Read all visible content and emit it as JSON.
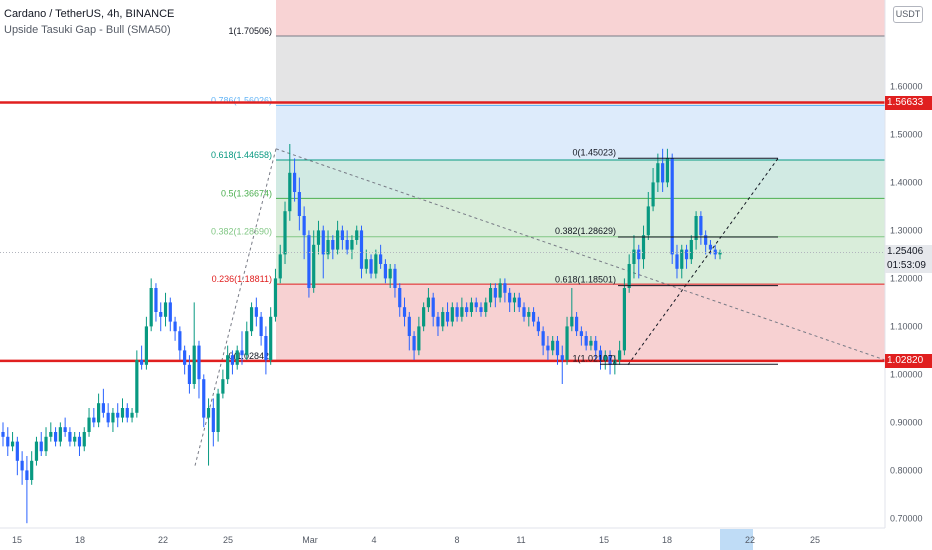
{
  "header": {
    "title": "Cardano / TetherUS, 4h, BINANCE",
    "indicator": "Upside Tasuki Gap - Bull (SMA50)"
  },
  "toolbar": {
    "currency_button": "USDT"
  },
  "price_axis": {
    "ticks": [
      "1.60000",
      "1.50000",
      "1.40000",
      "1.30000",
      "1.20000",
      "1.10000",
      "1.00000",
      "0.90000",
      "0.80000",
      "0.70000"
    ],
    "tick_values": [
      1.6,
      1.5,
      1.4,
      1.3,
      1.2,
      1.1,
      1.0,
      0.9,
      0.8,
      0.7
    ],
    "current_price": "1.25406",
    "countdown": "01:53:09",
    "resistance_label": "1.56633",
    "support_label": "1.02820"
  },
  "time_axis": {
    "labels": [
      "15",
      "18",
      "22",
      "25",
      "Mar",
      "4",
      "8",
      "11",
      "15",
      "18",
      "22",
      "25"
    ],
    "highlighted": "22"
  },
  "colors": {
    "up": "#089981",
    "down": "#2962ff",
    "level_line": "#e01f1f",
    "fib_red": "#f7cfd0",
    "fib_green": "#d7ecd8",
    "fib_teal": "#cfe9e2",
    "fib_blue": "#dbeafb",
    "fib_grey": "#e3e3e4"
  },
  "chart_data": {
    "type": "candlestick",
    "title": "Cardano / TetherUS, 4h, BINANCE",
    "ylim": [
      0.68,
      1.78
    ],
    "grid": false,
    "horizontal_levels": [
      1.56633,
      1.0282
    ],
    "fib_retracement_1": {
      "labels": [
        "1(1.70506)",
        "0.786(1.56026)",
        "0.618(1.44658)",
        "0.5(1.36674)",
        "0.382(1.28690)",
        "0.236(1.18811)",
        "0(1.02842)"
      ],
      "levels": [
        1.70506,
        1.56026,
        1.44658,
        1.36674,
        1.2869,
        1.18811,
        1.02842
      ]
    },
    "fib_retracement_2": {
      "labels": [
        "0(1.45023)",
        "0.382(1.28629)",
        "0.618(1.18501)",
        "1(1.02107)"
      ],
      "levels": [
        1.45023,
        1.28629,
        1.18501,
        1.02107
      ]
    },
    "candles": [
      [
        0.88,
        0.87,
        0.9,
        0.85
      ],
      [
        0.87,
        0.85,
        0.89,
        0.83
      ],
      [
        0.85,
        0.86,
        0.88,
        0.84
      ],
      [
        0.86,
        0.82,
        0.87,
        0.79
      ],
      [
        0.82,
        0.8,
        0.84,
        0.77
      ],
      [
        0.8,
        0.78,
        0.83,
        0.69
      ],
      [
        0.78,
        0.82,
        0.84,
        0.77
      ],
      [
        0.82,
        0.86,
        0.87,
        0.81
      ],
      [
        0.86,
        0.84,
        0.88,
        0.83
      ],
      [
        0.84,
        0.87,
        0.89,
        0.83
      ],
      [
        0.87,
        0.88,
        0.9,
        0.86
      ],
      [
        0.88,
        0.86,
        0.89,
        0.85
      ],
      [
        0.86,
        0.89,
        0.9,
        0.85
      ],
      [
        0.89,
        0.88,
        0.91,
        0.87
      ],
      [
        0.88,
        0.86,
        0.89,
        0.85
      ],
      [
        0.86,
        0.87,
        0.88,
        0.85
      ],
      [
        0.87,
        0.85,
        0.88,
        0.83
      ],
      [
        0.85,
        0.88,
        0.89,
        0.84
      ],
      [
        0.88,
        0.91,
        0.93,
        0.87
      ],
      [
        0.91,
        0.9,
        0.93,
        0.89
      ],
      [
        0.9,
        0.94,
        0.96,
        0.89
      ],
      [
        0.94,
        0.92,
        0.97,
        0.91
      ],
      [
        0.92,
        0.9,
        0.94,
        0.89
      ],
      [
        0.9,
        0.92,
        0.93,
        0.88
      ],
      [
        0.92,
        0.91,
        0.94,
        0.89
      ],
      [
        0.91,
        0.93,
        0.95,
        0.9
      ],
      [
        0.93,
        0.91,
        0.94,
        0.9
      ],
      [
        0.91,
        0.92,
        0.93,
        0.9
      ],
      [
        0.92,
        1.03,
        1.05,
        0.91
      ],
      [
        1.03,
        1.02,
        1.06,
        1.01
      ],
      [
        1.02,
        1.1,
        1.12,
        1.01
      ],
      [
        1.1,
        1.18,
        1.2,
        1.09
      ],
      [
        1.18,
        1.13,
        1.19,
        1.11
      ],
      [
        1.13,
        1.12,
        1.15,
        1.09
      ],
      [
        1.12,
        1.15,
        1.17,
        1.1
      ],
      [
        1.15,
        1.11,
        1.16,
        1.09
      ],
      [
        1.11,
        1.09,
        1.12,
        1.07
      ],
      [
        1.09,
        1.05,
        1.1,
        1.03
      ],
      [
        1.05,
        1.02,
        1.06,
        1.0
      ],
      [
        1.02,
        0.98,
        1.04,
        0.96
      ],
      [
        0.98,
        1.06,
        1.15,
        0.97
      ],
      [
        1.06,
        0.99,
        1.07,
        0.95
      ],
      [
        0.99,
        0.91,
        1.0,
        0.89
      ],
      [
        0.91,
        0.93,
        0.95,
        0.81
      ],
      [
        0.93,
        0.88,
        0.95,
        0.85
      ],
      [
        0.88,
        0.96,
        0.97,
        0.86
      ],
      [
        0.96,
        0.99,
        1.01,
        0.95
      ],
      [
        0.99,
        1.04,
        1.06,
        0.98
      ],
      [
        1.04,
        1.02,
        1.05,
        1.0
      ],
      [
        1.02,
        1.05,
        1.06,
        1.01
      ],
      [
        1.05,
        1.04,
        1.09,
        1.02
      ],
      [
        1.04,
        1.09,
        1.11,
        1.03
      ],
      [
        1.09,
        1.14,
        1.15,
        1.08
      ],
      [
        1.14,
        1.12,
        1.16,
        1.1
      ],
      [
        1.12,
        1.08,
        1.13,
        1.06
      ],
      [
        1.08,
        1.03,
        1.1,
        1.0
      ],
      [
        1.03,
        1.12,
        1.14,
        1.02
      ],
      [
        1.12,
        1.2,
        1.22,
        1.11
      ],
      [
        1.2,
        1.25,
        1.27,
        1.19
      ],
      [
        1.25,
        1.34,
        1.36,
        1.23
      ],
      [
        1.34,
        1.42,
        1.48,
        1.32
      ],
      [
        1.42,
        1.38,
        1.45,
        1.36
      ],
      [
        1.38,
        1.33,
        1.41,
        1.3
      ],
      [
        1.33,
        1.29,
        1.35,
        1.24
      ],
      [
        1.29,
        1.18,
        1.3,
        1.16
      ],
      [
        1.18,
        1.27,
        1.3,
        1.17
      ],
      [
        1.27,
        1.3,
        1.32,
        1.25
      ],
      [
        1.3,
        1.25,
        1.31,
        1.2
      ],
      [
        1.25,
        1.28,
        1.3,
        1.24
      ],
      [
        1.28,
        1.26,
        1.29,
        1.24
      ],
      [
        1.26,
        1.3,
        1.32,
        1.25
      ],
      [
        1.3,
        1.28,
        1.31,
        1.26
      ],
      [
        1.28,
        1.26,
        1.3,
        1.25
      ],
      [
        1.26,
        1.28,
        1.29,
        1.24
      ],
      [
        1.28,
        1.3,
        1.31,
        1.27
      ],
      [
        1.3,
        1.22,
        1.31,
        1.2
      ],
      [
        1.22,
        1.24,
        1.26,
        1.21
      ],
      [
        1.24,
        1.21,
        1.25,
        1.2
      ],
      [
        1.21,
        1.25,
        1.26,
        1.2
      ],
      [
        1.25,
        1.23,
        1.27,
        1.22
      ],
      [
        1.23,
        1.2,
        1.24,
        1.19
      ],
      [
        1.2,
        1.22,
        1.23,
        1.18
      ],
      [
        1.22,
        1.18,
        1.23,
        1.16
      ],
      [
        1.18,
        1.14,
        1.19,
        1.12
      ],
      [
        1.14,
        1.12,
        1.16,
        1.1
      ],
      [
        1.12,
        1.08,
        1.13,
        1.05
      ],
      [
        1.08,
        1.05,
        1.09,
        1.03
      ],
      [
        1.05,
        1.1,
        1.12,
        1.04
      ],
      [
        1.1,
        1.14,
        1.15,
        1.09
      ],
      [
        1.14,
        1.16,
        1.18,
        1.13
      ],
      [
        1.16,
        1.12,
        1.17,
        1.1
      ],
      [
        1.12,
        1.1,
        1.13,
        1.08
      ],
      [
        1.1,
        1.13,
        1.14,
        1.09
      ],
      [
        1.13,
        1.11,
        1.15,
        1.1
      ],
      [
        1.11,
        1.14,
        1.15,
        1.1
      ],
      [
        1.14,
        1.12,
        1.15,
        1.11
      ],
      [
        1.12,
        1.14,
        1.16,
        1.11
      ],
      [
        1.14,
        1.13,
        1.15,
        1.12
      ],
      [
        1.13,
        1.15,
        1.16,
        1.12
      ],
      [
        1.15,
        1.14,
        1.16,
        1.13
      ],
      [
        1.14,
        1.13,
        1.15,
        1.12
      ],
      [
        1.13,
        1.15,
        1.16,
        1.12
      ],
      [
        1.15,
        1.18,
        1.19,
        1.14
      ],
      [
        1.18,
        1.16,
        1.19,
        1.14
      ],
      [
        1.16,
        1.19,
        1.2,
        1.15
      ],
      [
        1.19,
        1.17,
        1.2,
        1.15
      ],
      [
        1.17,
        1.15,
        1.18,
        1.13
      ],
      [
        1.15,
        1.16,
        1.17,
        1.13
      ],
      [
        1.16,
        1.14,
        1.17,
        1.13
      ],
      [
        1.14,
        1.12,
        1.15,
        1.11
      ],
      [
        1.12,
        1.13,
        1.14,
        1.1
      ],
      [
        1.13,
        1.11,
        1.14,
        1.1
      ],
      [
        1.11,
        1.09,
        1.12,
        1.08
      ],
      [
        1.09,
        1.06,
        1.1,
        1.04
      ],
      [
        1.06,
        1.05,
        1.08,
        1.03
      ],
      [
        1.05,
        1.07,
        1.08,
        1.04
      ],
      [
        1.07,
        1.04,
        1.08,
        1.02
      ],
      [
        1.04,
        1.03,
        1.06,
        0.98
      ],
      [
        1.03,
        1.1,
        1.12,
        1.02
      ],
      [
        1.1,
        1.12,
        1.18,
        1.09
      ],
      [
        1.12,
        1.09,
        1.13,
        1.08
      ],
      [
        1.09,
        1.08,
        1.1,
        1.06
      ],
      [
        1.08,
        1.06,
        1.09,
        1.05
      ],
      [
        1.06,
        1.07,
        1.08,
        1.05
      ],
      [
        1.07,
        1.05,
        1.08,
        1.03
      ],
      [
        1.05,
        1.03,
        1.06,
        1.01
      ],
      [
        1.03,
        1.04,
        1.05,
        1.01
      ],
      [
        1.04,
        1.02,
        1.05,
        1.0
      ],
      [
        1.02,
        1.03,
        1.04,
        1.0
      ],
      [
        1.03,
        1.05,
        1.07,
        1.02
      ],
      [
        1.05,
        1.18,
        1.2,
        1.04
      ],
      [
        1.18,
        1.23,
        1.25,
        1.17
      ],
      [
        1.23,
        1.26,
        1.29,
        1.2
      ],
      [
        1.26,
        1.24,
        1.27,
        1.2
      ],
      [
        1.24,
        1.29,
        1.31,
        1.22
      ],
      [
        1.29,
        1.35,
        1.38,
        1.28
      ],
      [
        1.35,
        1.4,
        1.43,
        1.34
      ],
      [
        1.4,
        1.44,
        1.46,
        1.38
      ],
      [
        1.44,
        1.4,
        1.47,
        1.38
      ],
      [
        1.4,
        1.45,
        1.47,
        1.39
      ],
      [
        1.45,
        1.25,
        1.46,
        1.23
      ],
      [
        1.25,
        1.22,
        1.27,
        1.2
      ],
      [
        1.22,
        1.26,
        1.27,
        1.2
      ],
      [
        1.26,
        1.24,
        1.27,
        1.22
      ],
      [
        1.24,
        1.28,
        1.29,
        1.23
      ],
      [
        1.28,
        1.33,
        1.34,
        1.26
      ],
      [
        1.33,
        1.29,
        1.34,
        1.27
      ],
      [
        1.29,
        1.27,
        1.3,
        1.25
      ],
      [
        1.27,
        1.26,
        1.28,
        1.25
      ],
      [
        1.26,
        1.25,
        1.27,
        1.24
      ],
      [
        1.25,
        1.254,
        1.26,
        1.24
      ]
    ]
  }
}
